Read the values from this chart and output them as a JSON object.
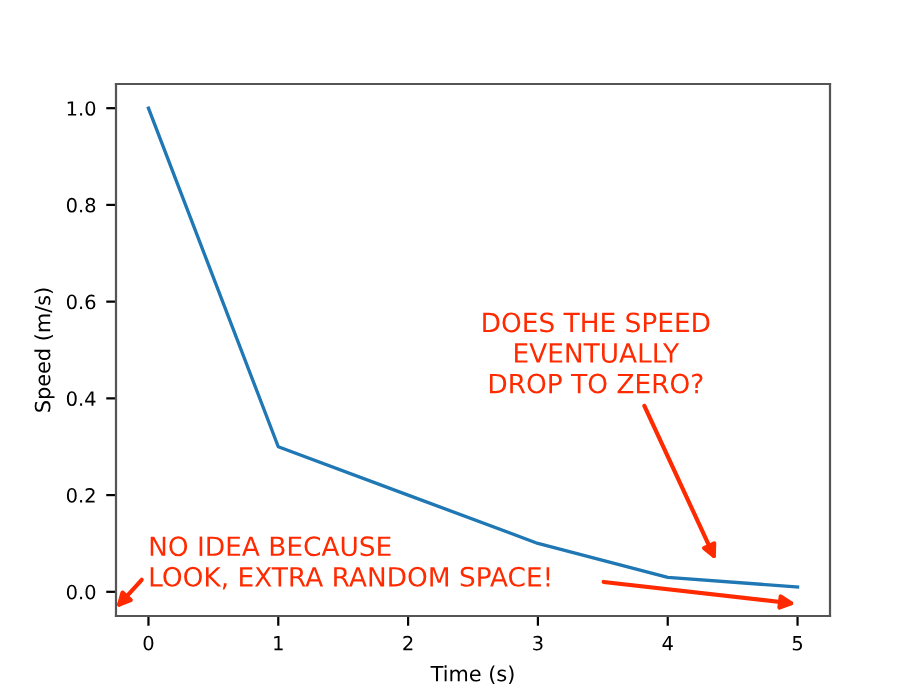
{
  "chart_data": {
    "type": "line",
    "xlabel": "Time (s)",
    "ylabel": "Speed (m/s)",
    "x": [
      0,
      1,
      2,
      3,
      4,
      5
    ],
    "series": [
      {
        "color": "#1f77b4",
        "values": [
          1.0,
          0.3,
          0.2,
          0.1,
          0.03,
          0.01
        ]
      }
    ],
    "xlim": [
      -0.25,
      5.25
    ],
    "xticks": [
      0,
      1,
      2,
      3,
      4,
      5
    ],
    "ylim": [
      -0.05,
      1.05
    ],
    "yticks": [
      {
        "value": 0,
        "label": "0.0"
      },
      {
        "value": 0.2,
        "label": "0.2"
      },
      {
        "value": 0.4,
        "label": "0.4"
      },
      {
        "value": 0.6,
        "label": "0.6"
      },
      {
        "value": 0.8,
        "label": "0.8"
      },
      {
        "value": 1,
        "label": "1.0"
      }
    ],
    "grid": false,
    "marker": "none",
    "line_style": "solid",
    "annotations": [
      "DOES THE SPEED\nEVENTUALLY\nDROP TO ZERO?",
      "NO IDEA BECAUSE\nLOOK, EXTRA RANDOM SPACE!"
    ]
  }
}
